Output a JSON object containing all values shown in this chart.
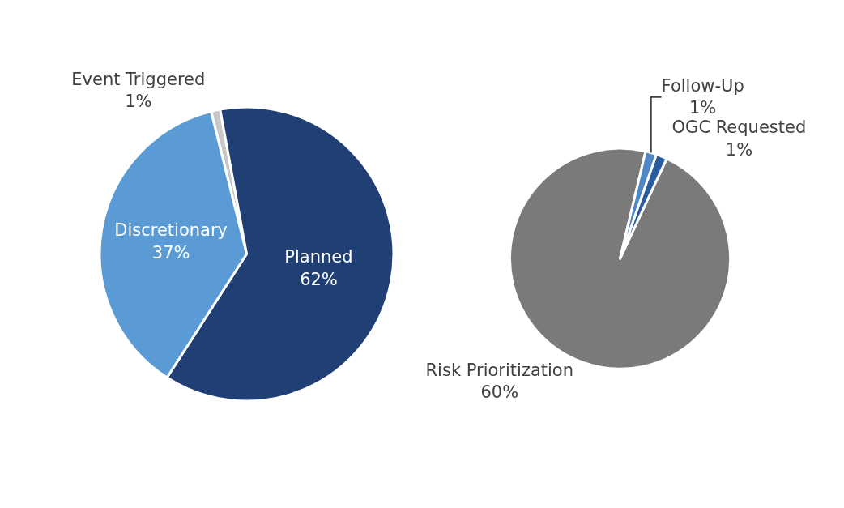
{
  "chart_data": [
    {
      "type": "pie",
      "categories": [
        "Event Triggered",
        "Planned",
        "Discretionary"
      ],
      "values": [
        1,
        62,
        37
      ],
      "colors": [
        "#c8c8c8",
        "#203f74",
        "#5b9bd5"
      ],
      "value_labels": [
        "1%",
        "62%",
        "37%"
      ]
    },
    {
      "type": "pie",
      "categories": [
        "Risk Prioritization",
        "OGC Requested",
        "Follow-Up"
      ],
      "values": [
        60,
        1,
        1
      ],
      "colors": [
        "#7a7a7a",
        "#2a5b9f",
        "#4f86c6"
      ],
      "value_labels": [
        "60%",
        "1%",
        "1%"
      ]
    }
  ]
}
